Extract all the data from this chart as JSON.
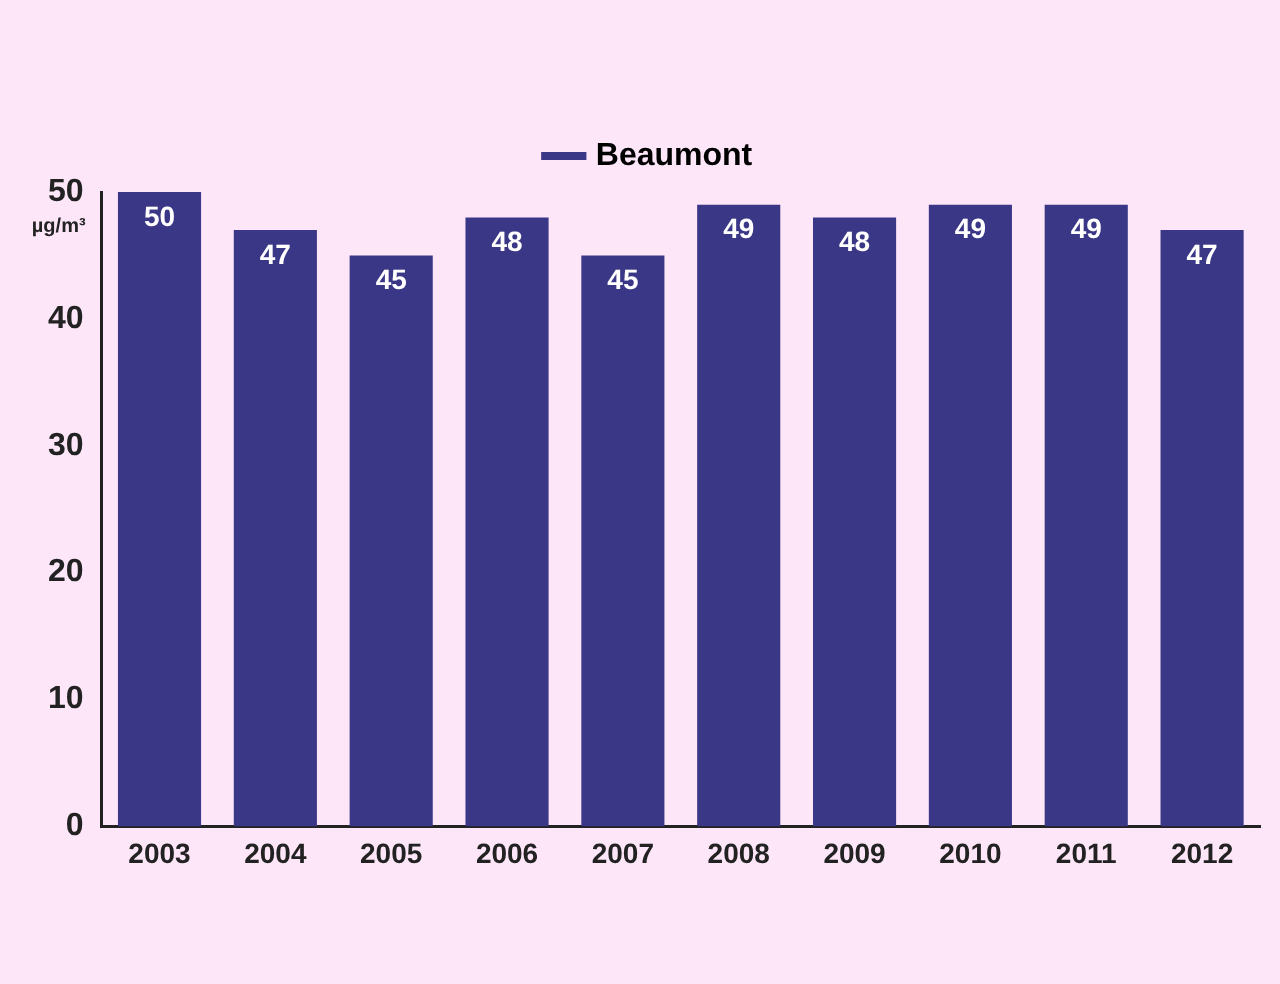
{
  "chart_data": {
    "type": "bar",
    "ylabel": "µg/m³",
    "categories": [
      "2003",
      "2004",
      "2005",
      "2006",
      "2007",
      "2008",
      "2009",
      "2010",
      "2011",
      "2012"
    ],
    "series": [
      {
        "name": "Beaumont",
        "color": "#3b3787",
        "values": [
          50,
          47,
          45,
          48,
          45,
          49,
          48,
          49,
          49,
          47
        ]
      }
    ],
    "ylim": [
      0,
      50
    ],
    "yticks": [
      0,
      10,
      20,
      30,
      40,
      50
    ],
    "grid": false,
    "legend": "top",
    "data_labels": true
  }
}
